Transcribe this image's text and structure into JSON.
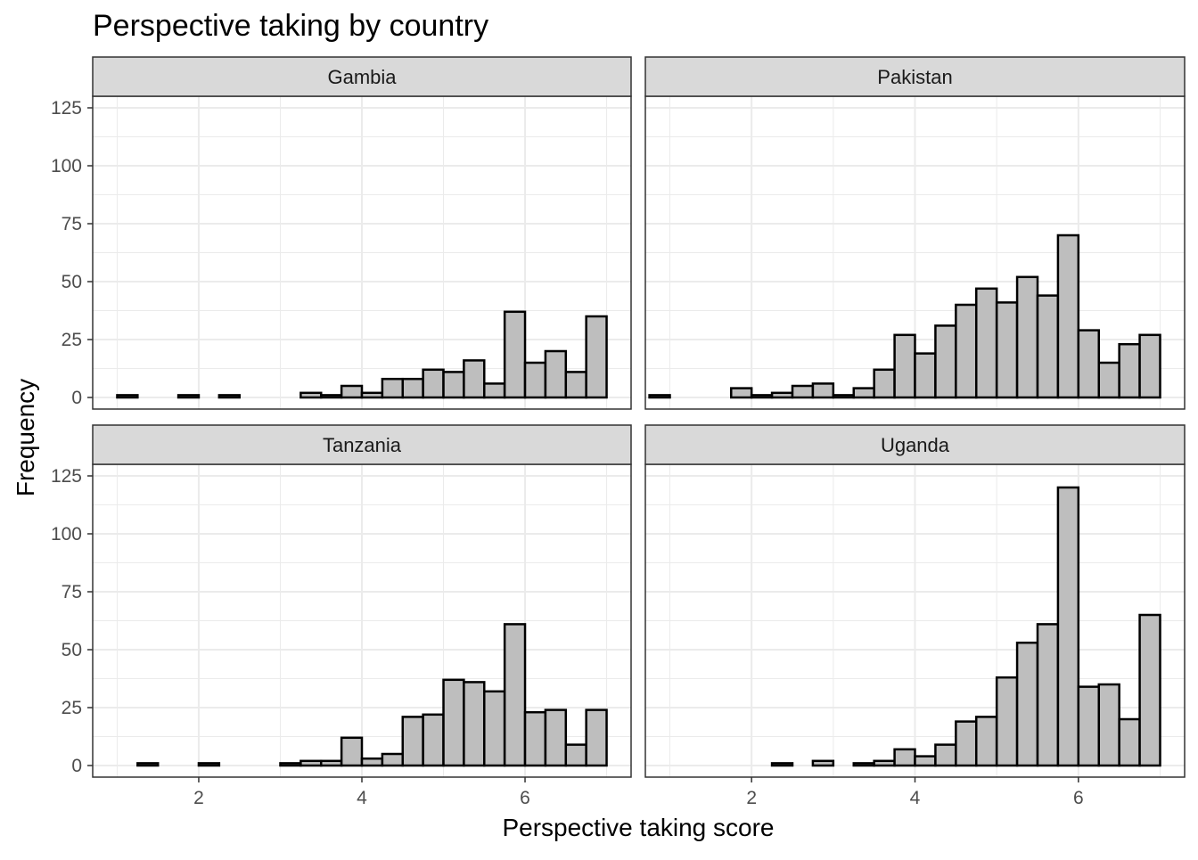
{
  "chart_data": {
    "type": "bar",
    "title": "Perspective taking by country",
    "xlabel": "Perspective taking score",
    "ylabel": "Frequency",
    "xlim": [
      0.7,
      7.3
    ],
    "ylim": [
      -5,
      130
    ],
    "x_ticks": [
      2,
      4,
      6
    ],
    "y_ticks": [
      0,
      25,
      50,
      75,
      100,
      125
    ],
    "bin_start": 0.75,
    "bin_width": 0.25,
    "grid": true,
    "facets": [
      {
        "name": "Gambia",
        "values": [
          0,
          1,
          0,
          0,
          1,
          0,
          1,
          0,
          0,
          0,
          2,
          1,
          5,
          2,
          8,
          8,
          12,
          11,
          16,
          6,
          37,
          15,
          20,
          11,
          35
        ]
      },
      {
        "name": "Pakistan",
        "values": [
          1,
          0,
          0,
          0,
          4,
          1,
          2,
          5,
          6,
          1,
          4,
          12,
          27,
          19,
          31,
          40,
          47,
          41,
          52,
          44,
          70,
          29,
          15,
          23,
          27
        ]
      },
      {
        "name": "Tanzania",
        "values": [
          0,
          0,
          1,
          0,
          0,
          1,
          0,
          0,
          0,
          1,
          2,
          2,
          12,
          3,
          5,
          21,
          22,
          37,
          36,
          32,
          61,
          23,
          24,
          9,
          24
        ]
      },
      {
        "name": "Uganda",
        "values": [
          0,
          0,
          0,
          0,
          0,
          0,
          1,
          0,
          2,
          0,
          1,
          2,
          7,
          4,
          9,
          19,
          21,
          38,
          53,
          61,
          120,
          34,
          35,
          20,
          65
        ]
      }
    ]
  }
}
